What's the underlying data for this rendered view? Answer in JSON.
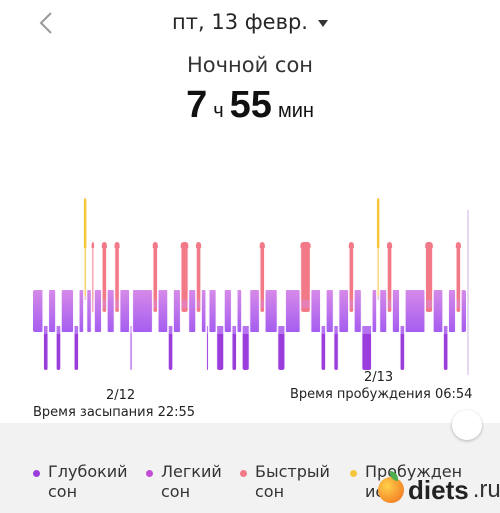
{
  "header": {
    "date": "пт, 13 февр.",
    "title": "Ночной сон",
    "hours": "7",
    "hours_unit": "ч",
    "minutes": "55",
    "minutes_unit": "мин"
  },
  "timeline": {
    "start_date": "2/12",
    "end_date": "2/13",
    "sleep_label": "Время засыпания 22:55",
    "wake_label": "Время пробуждения 06:54"
  },
  "colors": {
    "deep": "#9b3ddc",
    "light": "#c07bf0",
    "rem": "#f27a88",
    "awake": "#f7c53a"
  },
  "legend": [
    {
      "label": "Глубокий\nсон",
      "color": "#9b3ddc"
    },
    {
      "label": "Легкий\nсон",
      "color": "#c24cd6"
    },
    {
      "label": "Быстрый\nсон",
      "color": "#f27a88"
    },
    {
      "label": "Пробужден\nие",
      "color": "#f7c53a"
    }
  ],
  "watermark": {
    "brand": "diets",
    "tld": ".ru"
  },
  "chart_data": {
    "type": "hypnogram",
    "stages": [
      "awake",
      "rem",
      "light",
      "deep"
    ],
    "segments": [
      {
        "stage": "light",
        "dur": 4
      },
      {
        "stage": "deep",
        "dur": 2
      },
      {
        "stage": "light",
        "dur": 3
      },
      {
        "stage": "deep",
        "dur": 2
      },
      {
        "stage": "light",
        "dur": 5
      },
      {
        "stage": "deep",
        "dur": 2
      },
      {
        "stage": "light",
        "dur": 2
      },
      {
        "stage": "awake",
        "dur": 1
      },
      {
        "stage": "light",
        "dur": 2
      },
      {
        "stage": "rem",
        "dur": 1
      },
      {
        "stage": "light",
        "dur": 3
      },
      {
        "stage": "rem",
        "dur": 2
      },
      {
        "stage": "light",
        "dur": 3
      },
      {
        "stage": "rem",
        "dur": 2
      },
      {
        "stage": "light",
        "dur": 4
      },
      {
        "stage": "deep",
        "dur": 1
      },
      {
        "stage": "light",
        "dur": 8
      },
      {
        "stage": "rem",
        "dur": 2
      },
      {
        "stage": "light",
        "dur": 4
      },
      {
        "stage": "deep",
        "dur": 2
      },
      {
        "stage": "light",
        "dur": 3
      },
      {
        "stage": "rem",
        "dur": 3
      },
      {
        "stage": "light",
        "dur": 3
      },
      {
        "stage": "rem",
        "dur": 2
      },
      {
        "stage": "light",
        "dur": 2
      },
      {
        "stage": "deep",
        "dur": 1
      },
      {
        "stage": "light",
        "dur": 3
      },
      {
        "stage": "deep",
        "dur": 3
      },
      {
        "stage": "light",
        "dur": 3
      },
      {
        "stage": "deep",
        "dur": 2
      },
      {
        "stage": "light",
        "dur": 2
      },
      {
        "stage": "deep",
        "dur": 3
      },
      {
        "stage": "light",
        "dur": 4
      },
      {
        "stage": "rem",
        "dur": 2
      },
      {
        "stage": "light",
        "dur": 5
      },
      {
        "stage": "deep",
        "dur": 3
      },
      {
        "stage": "light",
        "dur": 6
      },
      {
        "stage": "rem",
        "dur": 4
      },
      {
        "stage": "light",
        "dur": 4
      },
      {
        "stage": "deep",
        "dur": 2
      },
      {
        "stage": "light",
        "dur": 3
      },
      {
        "stage": "deep",
        "dur": 2
      },
      {
        "stage": "light",
        "dur": 4
      },
      {
        "stage": "rem",
        "dur": 2
      },
      {
        "stage": "light",
        "dur": 3
      },
      {
        "stage": "deep",
        "dur": 4
      },
      {
        "stage": "light",
        "dur": 2
      },
      {
        "stage": "awake",
        "dur": 1
      },
      {
        "stage": "light",
        "dur": 3
      },
      {
        "stage": "rem",
        "dur": 2
      },
      {
        "stage": "light",
        "dur": 3
      },
      {
        "stage": "deep",
        "dur": 2
      },
      {
        "stage": "light",
        "dur": 8
      },
      {
        "stage": "rem",
        "dur": 3
      },
      {
        "stage": "light",
        "dur": 4
      },
      {
        "stage": "deep",
        "dur": 2
      },
      {
        "stage": "light",
        "dur": 3
      },
      {
        "stage": "rem",
        "dur": 2
      },
      {
        "stage": "light",
        "dur": 2
      }
    ]
  }
}
